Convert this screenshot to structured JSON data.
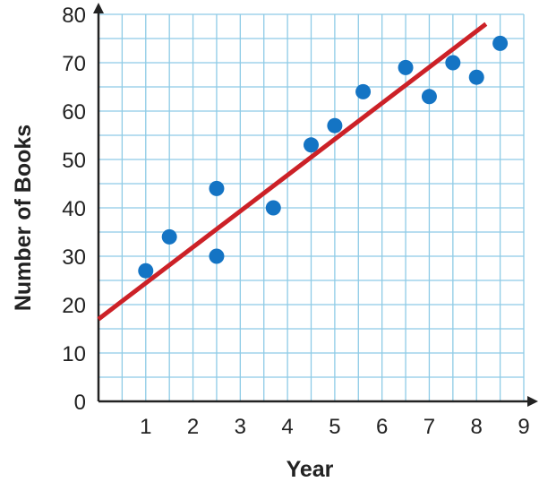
{
  "chart_data": {
    "type": "scatter",
    "title": "",
    "xlabel": "Year",
    "ylabel": "Number of Books",
    "xlim": [
      0,
      9
    ],
    "ylim": [
      0,
      80
    ],
    "grid": true,
    "x_ticks": [
      1,
      2,
      3,
      4,
      5,
      6,
      7,
      8,
      9
    ],
    "y_ticks": [
      0,
      10,
      20,
      30,
      40,
      50,
      60,
      70,
      80
    ],
    "points": [
      {
        "x": 1.0,
        "y": 27
      },
      {
        "x": 1.5,
        "y": 34
      },
      {
        "x": 2.5,
        "y": 30
      },
      {
        "x": 2.5,
        "y": 44
      },
      {
        "x": 3.7,
        "y": 40
      },
      {
        "x": 4.5,
        "y": 53
      },
      {
        "x": 5.0,
        "y": 57
      },
      {
        "x": 5.6,
        "y": 64
      },
      {
        "x": 6.5,
        "y": 69
      },
      {
        "x": 7.0,
        "y": 63
      },
      {
        "x": 7.5,
        "y": 70
      },
      {
        "x": 8.0,
        "y": 67
      },
      {
        "x": 8.5,
        "y": 74
      }
    ],
    "trend_line": {
      "x": [
        0,
        8.2
      ],
      "y": [
        17,
        78
      ]
    },
    "colors": {
      "points": "#1474c4",
      "trend_line": "#cc2127",
      "grid": "#8ecbe6",
      "axis": "#222222"
    }
  }
}
